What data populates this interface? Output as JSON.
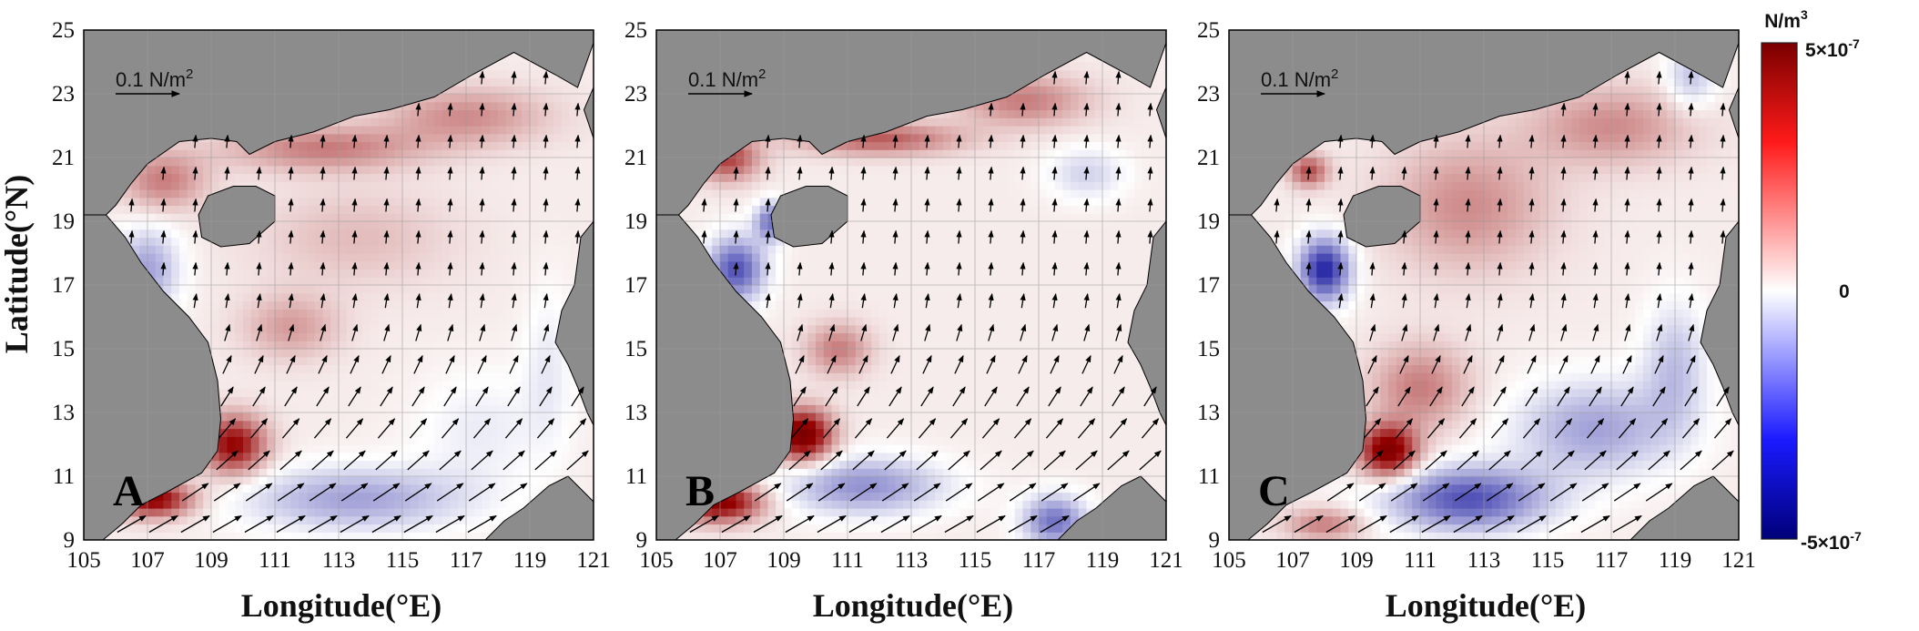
{
  "chart_data": {
    "type": "heatmap",
    "panels": [
      {
        "label": "A",
        "hotspots": [
          {
            "lon": 109.7,
            "lat": 12.0,
            "sx": 1.0,
            "sy": 0.9,
            "v": 0.75
          },
          {
            "lon": 107.2,
            "lat": 10.3,
            "sx": 1.2,
            "sy": 0.55,
            "v": 0.8
          },
          {
            "lon": 112.5,
            "lat": 21.3,
            "sx": 3.0,
            "sy": 0.7,
            "v": 0.35
          },
          {
            "lon": 117.0,
            "lat": 22.3,
            "sx": 2.5,
            "sy": 0.9,
            "v": 0.3
          },
          {
            "lon": 107.5,
            "lat": 20.3,
            "sx": 1.3,
            "sy": 0.9,
            "v": 0.35
          },
          {
            "lon": 111.5,
            "lat": 15.7,
            "sx": 1.5,
            "sy": 1.0,
            "v": 0.25
          },
          {
            "lon": 113.5,
            "lat": 18.5,
            "sx": 3.0,
            "sy": 1.5,
            "v": 0.15
          },
          {
            "lon": 107.0,
            "lat": 17.5,
            "sx": 1.0,
            "sy": 1.3,
            "v": -0.35
          },
          {
            "lon": 113.5,
            "lat": 10.3,
            "sx": 3.5,
            "sy": 1.0,
            "v": -0.35
          },
          {
            "lon": 117.5,
            "lat": 12.5,
            "sx": 2.0,
            "sy": 1.8,
            "v": -0.12
          },
          {
            "lon": 119.6,
            "lat": 14.5,
            "sx": 0.8,
            "sy": 2.5,
            "v": -0.12
          }
        ]
      },
      {
        "label": "B",
        "hotspots": [
          {
            "lon": 109.6,
            "lat": 12.3,
            "sx": 0.9,
            "sy": 0.8,
            "v": 0.95
          },
          {
            "lon": 107.0,
            "lat": 10.2,
            "sx": 1.3,
            "sy": 0.6,
            "v": 0.85
          },
          {
            "lon": 107.2,
            "lat": 21.0,
            "sx": 1.0,
            "sy": 0.7,
            "v": 0.55
          },
          {
            "lon": 112.0,
            "lat": 21.6,
            "sx": 2.5,
            "sy": 0.5,
            "v": 0.45
          },
          {
            "lon": 116.5,
            "lat": 22.8,
            "sx": 2.0,
            "sy": 0.8,
            "v": 0.35
          },
          {
            "lon": 110.7,
            "lat": 15.0,
            "sx": 1.0,
            "sy": 0.8,
            "v": 0.35
          },
          {
            "lon": 107.5,
            "lat": 17.5,
            "sx": 0.9,
            "sy": 1.0,
            "v": -0.6
          },
          {
            "lon": 108.6,
            "lat": 19.0,
            "sx": 0.5,
            "sy": 0.6,
            "v": -0.5
          },
          {
            "lon": 111.5,
            "lat": 10.7,
            "sx": 2.5,
            "sy": 0.9,
            "v": -0.4
          },
          {
            "lon": 117.5,
            "lat": 9.6,
            "sx": 1.0,
            "sy": 0.8,
            "v": -0.5
          },
          {
            "lon": 118.5,
            "lat": 20.5,
            "sx": 1.2,
            "sy": 0.8,
            "v": -0.2
          }
        ]
      },
      {
        "label": "C",
        "hotspots": [
          {
            "lon": 110.0,
            "lat": 11.8,
            "sx": 0.9,
            "sy": 0.8,
            "v": 0.9
          },
          {
            "lon": 111.0,
            "lat": 13.8,
            "sx": 1.5,
            "sy": 1.3,
            "v": 0.35
          },
          {
            "lon": 112.5,
            "lat": 19.5,
            "sx": 2.5,
            "sy": 2.0,
            "v": 0.3
          },
          {
            "lon": 117.0,
            "lat": 22.0,
            "sx": 2.5,
            "sy": 1.2,
            "v": 0.3
          },
          {
            "lon": 108.0,
            "lat": 9.5,
            "sx": 1.2,
            "sy": 0.5,
            "v": 0.35
          },
          {
            "lon": 107.5,
            "lat": 20.6,
            "sx": 0.6,
            "sy": 0.5,
            "v": 0.5
          },
          {
            "lon": 108.0,
            "lat": 17.5,
            "sx": 0.8,
            "sy": 1.0,
            "v": -0.75
          },
          {
            "lon": 112.5,
            "lat": 10.3,
            "sx": 2.5,
            "sy": 1.0,
            "v": -0.6
          },
          {
            "lon": 116.5,
            "lat": 12.5,
            "sx": 2.5,
            "sy": 1.5,
            "v": -0.35
          },
          {
            "lon": 119.0,
            "lat": 14.5,
            "sx": 1.0,
            "sy": 2.0,
            "v": -0.25
          },
          {
            "lon": 119.5,
            "lat": 23.5,
            "sx": 0.8,
            "sy": 1.0,
            "v": -0.25
          }
        ]
      }
    ],
    "x_ticks": [
      "105",
      "107",
      "109",
      "111",
      "113",
      "115",
      "117",
      "119",
      "121"
    ],
    "y_ticks": [
      "9",
      "11",
      "13",
      "15",
      "17",
      "19",
      "21",
      "23",
      "25"
    ],
    "xlim": [
      105,
      121
    ],
    "ylim": [
      9,
      25
    ],
    "xlabel": "Longitude(°E)",
    "ylabel": "Latitude(°N)",
    "vector_scale_label": "0.1 N/m",
    "vector_scale_sup": "2",
    "colorbar": {
      "units": "N/m",
      "units_sup": "3",
      "max_label": "5×10",
      "max_exp": "-7",
      "mid_label": "0",
      "min_label": "-5×10",
      "min_exp": "-7",
      "range": [
        -5e-07,
        5e-07
      ],
      "colors": {
        "max": "#7a0000",
        "pos": "#ff1a1a",
        "zero": "#ffffff",
        "neg": "#1a1aff",
        "min": "#00007a"
      }
    },
    "land_color": "#8c8c8c",
    "grid": true
  }
}
